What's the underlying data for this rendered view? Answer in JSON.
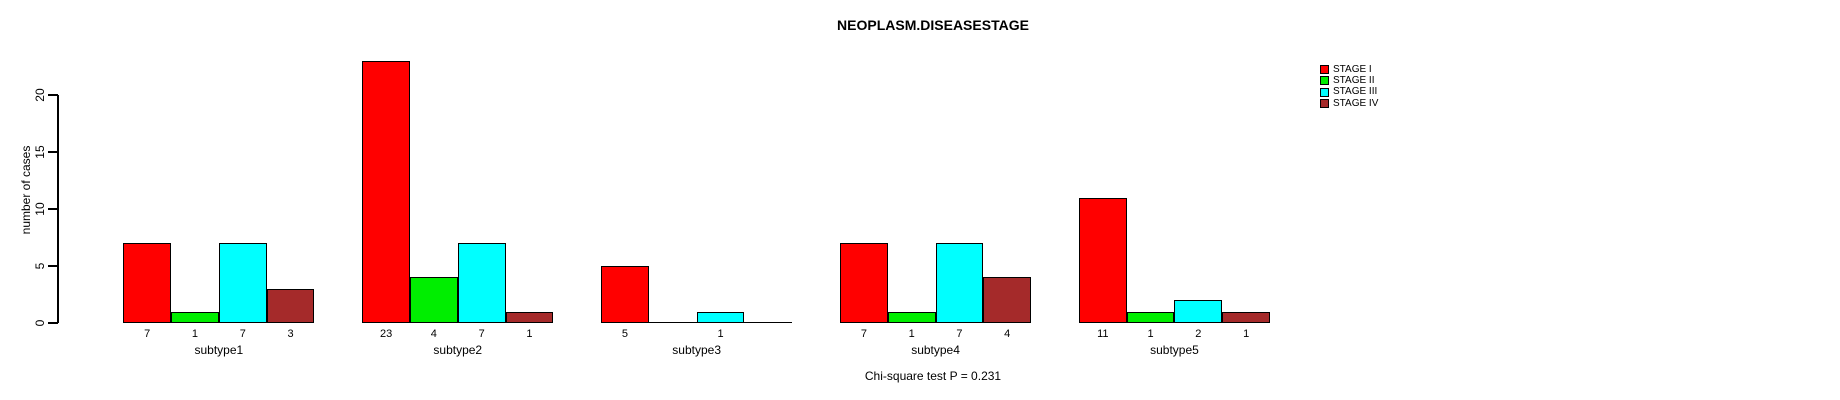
{
  "chart_data": {
    "type": "bar",
    "title": "NEOPLASM.DISEASESTAGE",
    "xlabel": "",
    "ylabel": "number of cases",
    "categories": [
      "subtype1",
      "subtype2",
      "subtype3",
      "subtype4",
      "subtype5"
    ],
    "series": [
      {
        "name": "STAGE I",
        "color": "#FF0000",
        "values": [
          7,
          23,
          5,
          7,
          11
        ]
      },
      {
        "name": "STAGE II",
        "color": "#00EE00",
        "values": [
          1,
          4,
          0,
          1,
          1
        ]
      },
      {
        "name": "STAGE III",
        "color": "#00FFFF",
        "values": [
          7,
          7,
          1,
          7,
          2
        ]
      },
      {
        "name": "STAGE IV",
        "color": "#A52A2A",
        "values": [
          3,
          1,
          0,
          4,
          1
        ]
      }
    ],
    "yticks": [
      0,
      5,
      10,
      15,
      20
    ],
    "ylim": [
      0,
      23
    ],
    "grid": false,
    "bar_value_labels_shown": true,
    "legend_position": "top-right",
    "footnote": "Chi-square test P = 0.231"
  }
}
